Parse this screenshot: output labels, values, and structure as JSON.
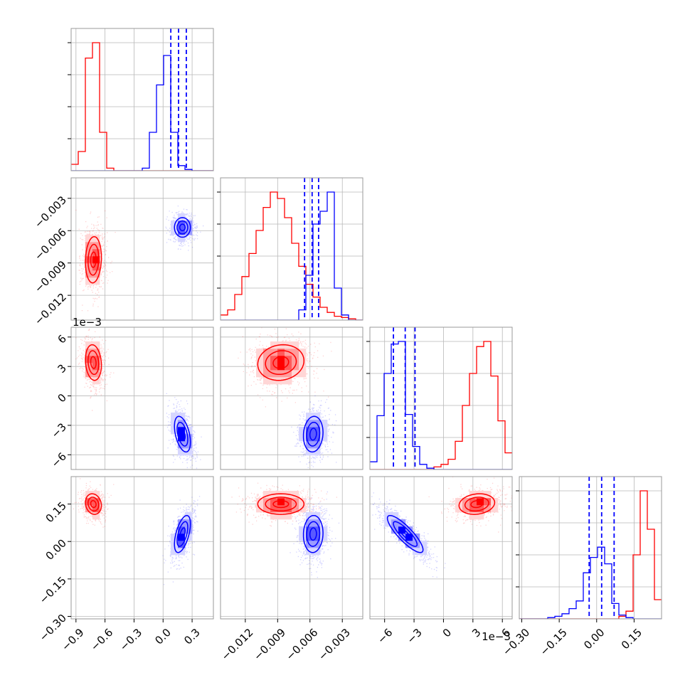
{
  "colors": {
    "red": "#ff0000",
    "blue": "#0000ff",
    "frame": "#9a9a9a",
    "grid": "#b8b8b8"
  },
  "chart_data": {
    "type": "corner",
    "title": "",
    "grid": true,
    "params": [
      {
        "label": "",
        "range": [
          -0.95,
          0.52
        ],
        "ticks": [
          -0.9,
          -0.6,
          -0.3,
          0.0,
          0.3
        ],
        "tick_labels": [
          "−0.9",
          "−0.6",
          "−0.3",
          "0.0",
          "0.3"
        ],
        "offset_text": ""
      },
      {
        "label": "",
        "range": [
          -0.0143,
          -0.0011
        ],
        "ticks": [
          -0.012,
          -0.009,
          -0.006,
          -0.003
        ],
        "tick_labels": [
          "−0.012",
          "−0.009",
          "−0.006",
          "−0.003"
        ],
        "offset_text": ""
      },
      {
        "label": "",
        "range": [
          -7.5,
          7.0
        ],
        "ticks": [
          -6,
          -3,
          0,
          3,
          6
        ],
        "tick_labels": [
          "−6",
          "−3",
          "0",
          "3",
          "6"
        ],
        "offset_text": "1e−3"
      },
      {
        "label": "",
        "range": [
          -0.31,
          0.26
        ],
        "ticks": [
          -0.3,
          -0.15,
          0.0,
          0.15
        ],
        "tick_labels": [
          "−0.30",
          "−0.15",
          "0.00",
          "0.15"
        ],
        "offset_text": ""
      }
    ],
    "series": [
      {
        "name": "",
        "color": "#ff0000",
        "means": [
          -0.72,
          -0.0087,
          3.4,
          0.15
        ],
        "sds": [
          0.05,
          0.0013,
          1.1,
          0.025
        ],
        "quantiles": null,
        "hist": [
          {
            "counts": [
              0.05,
              0.15,
              0.88,
              1.0,
              0.3,
              0.02,
              0,
              0,
              0,
              0,
              0,
              0,
              0,
              0,
              0,
              0,
              0,
              0,
              0,
              0
            ]
          },
          {
            "counts": [
              0.04,
              0.08,
              0.2,
              0.34,
              0.52,
              0.7,
              0.88,
              1.0,
              0.95,
              0.8,
              0.6,
              0.42,
              0.28,
              0.18,
              0.1,
              0.06,
              0.03,
              0.02,
              0.01,
              0
            ]
          },
          {
            "counts": [
              0,
              0,
              0,
              0,
              0,
              0,
              0,
              0,
              0,
              0.02,
              0.04,
              0.08,
              0.22,
              0.5,
              0.75,
              0.96,
              1.0,
              0.73,
              0.38,
              0.13
            ]
          },
          {
            "counts": [
              0,
              0,
              0,
              0,
              0,
              0,
              0,
              0,
              0,
              0,
              0,
              0,
              0,
              0,
              0.02,
              0.06,
              0.5,
              1.0,
              0.7,
              0.15
            ]
          }
        ]
      },
      {
        "name": "",
        "color": "#0000ff",
        "means": [
          0.2,
          -0.0057,
          -3.9,
          0.03
        ],
        "sds": [
          0.05,
          0.00055,
          1.1,
          0.045
        ],
        "quantiles": [
          [
            0.08,
            0.16,
            0.24
          ],
          [
            -0.0065,
            -0.0058,
            -0.0052
          ],
          [
            -5.1,
            -3.9,
            -2.9
          ],
          [
            -0.03,
            0.02,
            0.07
          ]
        ],
        "hist": [
          {
            "counts": [
              0,
              0,
              0,
              0,
              0,
              0,
              0,
              0,
              0,
              0,
              0.02,
              0.3,
              0.67,
              0.9,
              0.3,
              0.04,
              0.01,
              0,
              0,
              0
            ]
          },
          {
            "counts": [
              0,
              0,
              0,
              0,
              0,
              0,
              0,
              0,
              0,
              0,
              0,
              0.08,
              0.35,
              0.75,
              0.85,
              1.0,
              0.25,
              0.04,
              0,
              0
            ]
          },
          {
            "counts": [
              0.06,
              0.42,
              0.75,
              0.98,
              1.0,
              0.43,
              0.18,
              0.04,
              0.01,
              0,
              0,
              0,
              0,
              0,
              0,
              0,
              0,
              0,
              0,
              0
            ]
          },
          {
            "counts": [
              0,
              0,
              0,
              0,
              0.01,
              0.02,
              0.04,
              0.08,
              0.14,
              0.36,
              0.48,
              0.56,
              0.43,
              0.12,
              0.03,
              0.01,
              0,
              0,
              0,
              0
            ]
          }
        ]
      }
    ],
    "cross": [
      {
        "pair": [
          1,
          0
        ],
        "corr": [
          0.1,
          0.0
        ]
      },
      {
        "pair": [
          2,
          0
        ],
        "corr": [
          -0.15,
          -0.45
        ]
      },
      {
        "pair": [
          2,
          1
        ],
        "corr": [
          0.1,
          0.1
        ]
      },
      {
        "pair": [
          3,
          0
        ],
        "corr": [
          -0.15,
          0.55
        ]
      },
      {
        "pair": [
          3,
          1
        ],
        "corr": [
          0.0,
          0.05
        ]
      },
      {
        "pair": [
          3,
          2
        ],
        "corr": [
          0.15,
          -0.85
        ]
      }
    ]
  }
}
